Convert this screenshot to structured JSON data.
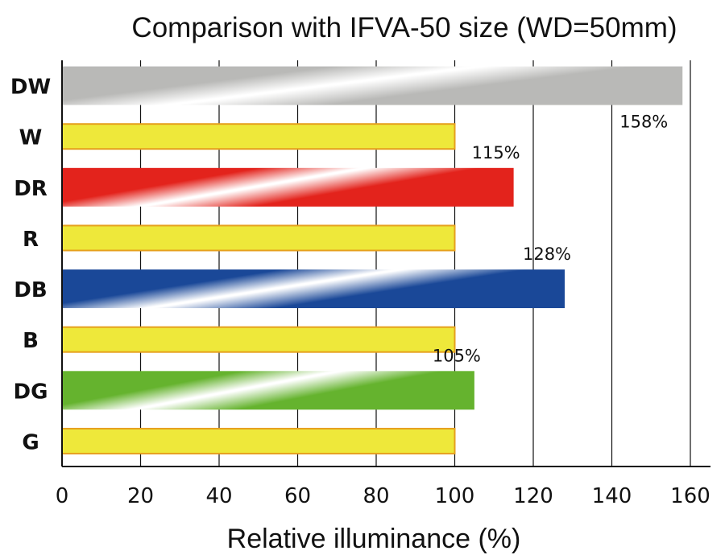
{
  "chart_data": {
    "type": "bar",
    "orientation": "horizontal",
    "title": "Comparison with IFVA-50 size (WD=50mm)",
    "xlabel": "Relative illuminance (%)",
    "ylabel": "",
    "xlim": [
      0,
      160
    ],
    "xticks": [
      0,
      20,
      40,
      60,
      80,
      100,
      120,
      140,
      160
    ],
    "grid": "vertical",
    "categories": [
      "DW",
      "W",
      "DR",
      "R",
      "DB",
      "B",
      "DG",
      "G"
    ],
    "values": [
      158,
      100,
      115,
      100,
      128,
      100,
      105,
      100
    ],
    "data_labels": [
      "158%",
      "",
      "115%",
      "",
      "128%",
      "",
      "105%",
      ""
    ],
    "colors": [
      "#b9b9b7",
      "#eee83a",
      "#e3231c",
      "#eee83a",
      "#1a4898",
      "#eee83a",
      "#65b32e",
      "#eee83a"
    ],
    "styles": [
      "gradient",
      "flat",
      "gradient",
      "flat",
      "gradient",
      "flat",
      "gradient",
      "flat"
    ],
    "flat_border_color": "#e6a01e"
  }
}
